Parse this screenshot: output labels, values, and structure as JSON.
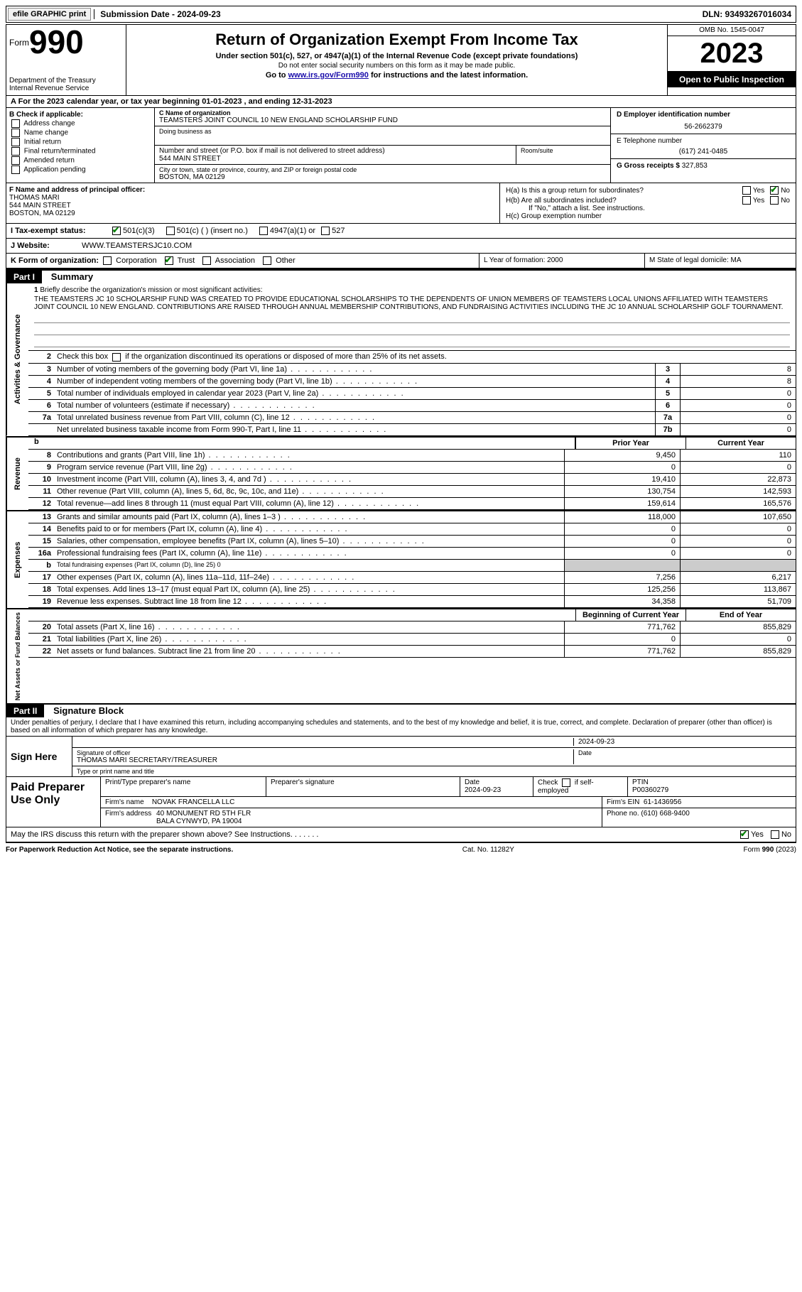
{
  "top": {
    "efile_label": "efile GRAPHIC print",
    "submission_label": "Submission Date - 2024-09-23",
    "dln": "DLN: 93493267016034"
  },
  "header": {
    "form_word": "Form",
    "form_num": "990",
    "dept": "Department of the Treasury\nInternal Revenue Service",
    "title": "Return of Organization Exempt From Income Tax",
    "sub1": "Under section 501(c), 527, or 4947(a)(1) of the Internal Revenue Code (except private foundations)",
    "sub2": "Do not enter social security numbers on this form as it may be made public.",
    "goto_pre": "Go to ",
    "goto_link": "www.irs.gov/Form990",
    "goto_post": " for instructions and the latest information.",
    "omb": "OMB No. 1545-0047",
    "year": "2023",
    "open": "Open to Public Inspection"
  },
  "row_a": {
    "text": "A For the 2023 calendar year, or tax year beginning 01-01-2023   , and ending 12-31-2023"
  },
  "col_b": {
    "label": "B Check if applicable:",
    "items": [
      "Address change",
      "Name change",
      "Initial return",
      "Final return/terminated",
      "Amended return",
      "Application pending"
    ]
  },
  "col_c": {
    "name_label": "C Name of organization",
    "name": "TEAMSTERS JOINT COUNCIL 10 NEW ENGLAND SCHOLARSHIP FUND",
    "dba_label": "Doing business as",
    "street_label": "Number and street (or P.O. box if mail is not delivered to street address)",
    "street": "544 MAIN STREET",
    "room_label": "Room/suite",
    "city_label": "City or town, state or province, country, and ZIP or foreign postal code",
    "city": "BOSTON, MA  02129"
  },
  "col_d": {
    "ein_label": "D Employer identification number",
    "ein": "56-2662379",
    "phone_label": "E Telephone number",
    "phone": "(617) 241-0485",
    "gross_label": "G Gross receipts $",
    "gross": "327,853"
  },
  "col_f": {
    "label": "F Name and address of principal officer:",
    "name": "THOMAS MARI",
    "addr1": "544 MAIN STREET",
    "addr2": "BOSTON, MA  02129"
  },
  "col_h": {
    "ha": "H(a)  Is this a group return for subordinates?",
    "hb": "H(b)  Are all subordinates included?",
    "hb_note": "If \"No,\" attach a list. See instructions.",
    "hc": "H(c)  Group exemption number",
    "yes": "Yes",
    "no": "No"
  },
  "row_i": {
    "label": "I  Tax-exempt status:",
    "opt1": "501(c)(3)",
    "opt2": "501(c) (  ) (insert no.)",
    "opt3": "4947(a)(1) or",
    "opt4": "527"
  },
  "row_j": {
    "label": "J  Website:",
    "value": "WWW.TEAMSTERSJC10.COM"
  },
  "row_k": {
    "label": "K Form of organization:",
    "opts": [
      "Corporation",
      "Trust",
      "Association",
      "Other"
    ],
    "l_label": "L Year of formation: 2000",
    "m_label": "M State of legal domicile: MA"
  },
  "part1": {
    "tag": "Part I",
    "title": "Summary",
    "side1": "Activities & Governance",
    "side2": "Revenue",
    "side3": "Expenses",
    "side4": "Net Assets or Fund Balances",
    "line1_label": "Briefly describe the organization's mission or most significant activities:",
    "line1": "THE TEAMSTERS JC 10 SCHOLARSHIP FUND WAS CREATED TO PROVIDE EDUCATIONAL SCHOLARSHIPS TO THE DEPENDENTS OF UNION MEMBERS OF TEAMSTERS LOCAL UNIONS AFFILIATED WITH TEAMSTERS JOINT COUNCIL 10 NEW ENGLAND. CONTRIBUTIONS ARE RAISED THROUGH ANNUAL MEMBERSHIP CONTRIBUTIONS, AND FUNDRAISING ACTIVITIES INCLUDING THE JC 10 ANNUAL SCHOLARSHIP GOLF TOURNAMENT.",
    "line2": "Check this box       if the organization discontinued its operations or disposed of more than 25% of its net assets.",
    "gov_rows": [
      {
        "n": "3",
        "t": "Number of voting members of the governing body (Part VI, line 1a)",
        "box": "3",
        "v": "8"
      },
      {
        "n": "4",
        "t": "Number of independent voting members of the governing body (Part VI, line 1b)",
        "box": "4",
        "v": "8"
      },
      {
        "n": "5",
        "t": "Total number of individuals employed in calendar year 2023 (Part V, line 2a)",
        "box": "5",
        "v": "0"
      },
      {
        "n": "6",
        "t": "Total number of volunteers (estimate if necessary)",
        "box": "6",
        "v": "0"
      },
      {
        "n": "7a",
        "t": "Total unrelated business revenue from Part VIII, column (C), line 12",
        "box": "7a",
        "v": "0"
      },
      {
        "n": "",
        "t": "Net unrelated business taxable income from Form 990-T, Part I, line 11",
        "box": "7b",
        "v": "0"
      }
    ],
    "col_prior": "Prior Year",
    "col_current": "Current Year",
    "rev_rows": [
      {
        "n": "8",
        "t": "Contributions and grants (Part VIII, line 1h)",
        "p": "9,450",
        "c": "110"
      },
      {
        "n": "9",
        "t": "Program service revenue (Part VIII, line 2g)",
        "p": "0",
        "c": "0"
      },
      {
        "n": "10",
        "t": "Investment income (Part VIII, column (A), lines 3, 4, and 7d )",
        "p": "19,410",
        "c": "22,873"
      },
      {
        "n": "11",
        "t": "Other revenue (Part VIII, column (A), lines 5, 6d, 8c, 9c, 10c, and 11e)",
        "p": "130,754",
        "c": "142,593"
      },
      {
        "n": "12",
        "t": "Total revenue—add lines 8 through 11 (must equal Part VIII, column (A), line 12)",
        "p": "159,614",
        "c": "165,576"
      }
    ],
    "exp_rows": [
      {
        "n": "13",
        "t": "Grants and similar amounts paid (Part IX, column (A), lines 1–3 )",
        "p": "118,000",
        "c": "107,650"
      },
      {
        "n": "14",
        "t": "Benefits paid to or for members (Part IX, column (A), line 4)",
        "p": "0",
        "c": "0"
      },
      {
        "n": "15",
        "t": "Salaries, other compensation, employee benefits (Part IX, column (A), lines 5–10)",
        "p": "0",
        "c": "0"
      },
      {
        "n": "16a",
        "t": "Professional fundraising fees (Part IX, column (A), line 11e)",
        "p": "0",
        "c": "0"
      },
      {
        "n": "b",
        "t": "Total fundraising expenses (Part IX, column (D), line 25) 0",
        "p": "",
        "c": "",
        "grey": true
      },
      {
        "n": "17",
        "t": "Other expenses (Part IX, column (A), lines 11a–11d, 11f–24e)",
        "p": "7,256",
        "c": "6,217"
      },
      {
        "n": "18",
        "t": "Total expenses. Add lines 13–17 (must equal Part IX, column (A), line 25)",
        "p": "125,256",
        "c": "113,867"
      },
      {
        "n": "19",
        "t": "Revenue less expenses. Subtract line 18 from line 12",
        "p": "34,358",
        "c": "51,709"
      }
    ],
    "col_begin": "Beginning of Current Year",
    "col_end": "End of Year",
    "na_rows": [
      {
        "n": "20",
        "t": "Total assets (Part X, line 16)",
        "p": "771,762",
        "c": "855,829"
      },
      {
        "n": "21",
        "t": "Total liabilities (Part X, line 26)",
        "p": "0",
        "c": "0"
      },
      {
        "n": "22",
        "t": "Net assets or fund balances. Subtract line 21 from line 20",
        "p": "771,762",
        "c": "855,829"
      }
    ]
  },
  "part2": {
    "tag": "Part II",
    "title": "Signature Block",
    "declaration": "Under penalties of perjury, I declare that I have examined this return, including accompanying schedules and statements, and to the best of my knowledge and belief, it is true, correct, and complete. Declaration of preparer (other than officer) is based on all information of which preparer has any knowledge.",
    "sign_here": "Sign Here",
    "sig_officer": "Signature of officer",
    "sig_date": "2024-09-23",
    "officer": "THOMAS MARI  SECRETARY/TREASURER",
    "type_name": "Type or print name and title",
    "paid": "Paid Preparer Use Only",
    "prep_name_label": "Print/Type preparer's name",
    "prep_sig_label": "Preparer's signature",
    "date_label": "Date",
    "date_val": "2024-09-23",
    "check_label": "Check        if self-employed",
    "ptin_label": "PTIN",
    "ptin": "P00360279",
    "firm_name_label": "Firm's name",
    "firm_name": "NOVAK FRANCELLA LLC",
    "firm_ein_label": "Firm's EIN",
    "firm_ein": "61-1436956",
    "firm_addr_label": "Firm's address",
    "firm_addr": "40 MONUMENT RD 5TH FLR\nBALA CYNWYD, PA  19004",
    "phone_label": "Phone no.",
    "phone": "(610) 668-9400",
    "discuss": "May the IRS discuss this return with the preparer shown above? See Instructions.",
    "yes": "Yes",
    "no": "No"
  },
  "footer": {
    "pra": "For Paperwork Reduction Act Notice, see the separate instructions.",
    "cat": "Cat. No. 11282Y",
    "form": "Form 990 (2023)"
  }
}
